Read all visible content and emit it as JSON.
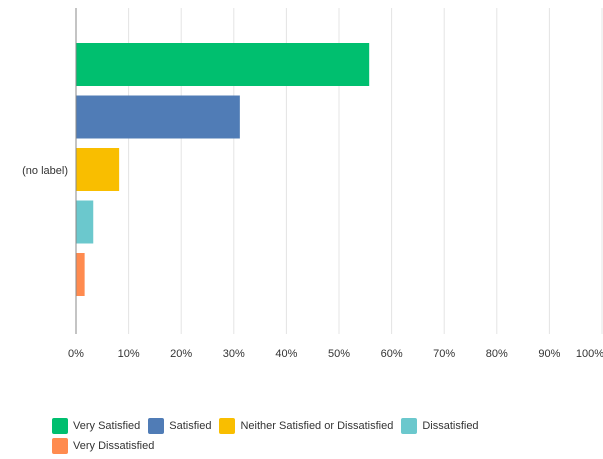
{
  "chart_data": {
    "type": "bar",
    "orientation": "horizontal",
    "categories": [
      "(no label)"
    ],
    "series": [
      {
        "name": "Very Satisfied",
        "color": "#00bf6f",
        "values": [
          55.74
        ]
      },
      {
        "name": "Satisfied",
        "color": "#507cb6",
        "values": [
          31.15
        ]
      },
      {
        "name": "Neither Satisfied or Dissatisfied",
        "color": "#f9be00",
        "values": [
          8.2
        ]
      },
      {
        "name": "Dissatisfied",
        "color": "#6bc8cd",
        "values": [
          3.28
        ]
      },
      {
        "name": "Very Dissatisfied",
        "color": "#ff8b4f",
        "values": [
          1.64
        ]
      }
    ],
    "xticks": [
      "0%",
      "10%",
      "20%",
      "30%",
      "40%",
      "50%",
      "60%",
      "70%",
      "80%",
      "90%",
      "100%"
    ],
    "xlim": [
      0,
      100
    ],
    "grid": true,
    "legend_position": "bottom",
    "title": "",
    "xlabel": "",
    "ylabel": ""
  }
}
